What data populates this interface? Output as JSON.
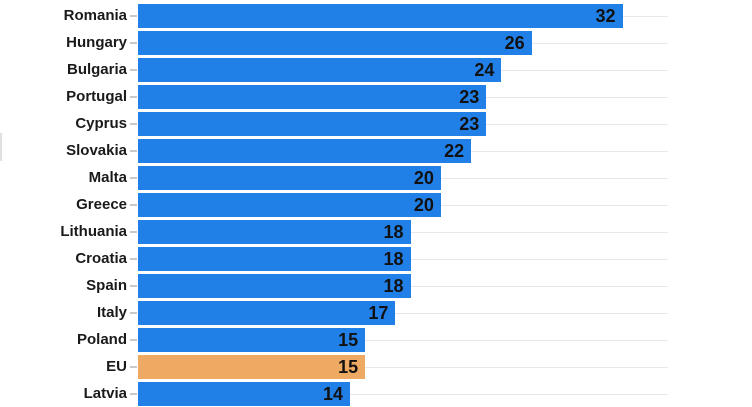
{
  "chart_data": {
    "type": "bar",
    "orientation": "horizontal",
    "title": "",
    "xlabel": "",
    "ylabel": "",
    "xlim": [
      0,
      35
    ],
    "grid": "category-gridlines-horizontal",
    "legend": "none",
    "categories": [
      "Romania",
      "Hungary",
      "Bulgaria",
      "Portugal",
      "Cyprus",
      "Slovakia",
      "Malta",
      "Greece",
      "Lithuania",
      "Croatia",
      "Spain",
      "Italy",
      "Poland",
      "EU",
      "Latvia"
    ],
    "values": [
      32,
      26,
      24,
      23,
      23,
      22,
      20,
      20,
      18,
      18,
      18,
      17,
      15,
      15,
      14
    ],
    "highlighted_category": "EU",
    "colors": {
      "bar": "#2180e8",
      "highlight": "#eea963",
      "gridline": "#e8e8e8",
      "tick": "#c9c9c9",
      "category_label": "#1a1a1a",
      "value_label": "#111111",
      "background": "#ffffff"
    }
  }
}
